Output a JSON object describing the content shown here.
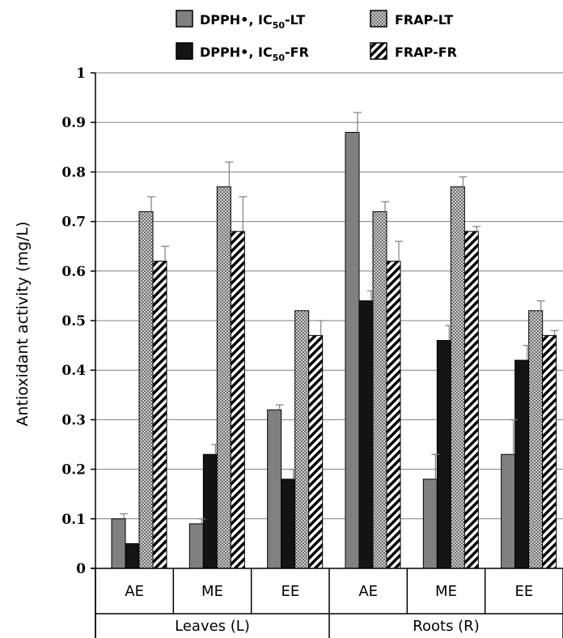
{
  "chart_data": {
    "type": "bar",
    "ylabel": "Antioxidant activity (mg/L)",
    "ylim": [
      0,
      1
    ],
    "yticks": [
      "0",
      "0.1",
      "0.2",
      "0.3",
      "0.4",
      "0.5",
      "0.6",
      "0.7",
      "0.8",
      "0.9",
      "1"
    ],
    "grid": true,
    "legend_position": "top",
    "groups": [
      {
        "label": "Leaves (L)",
        "categories": [
          "AE",
          "ME",
          "EE"
        ]
      },
      {
        "label": "Roots (R)",
        "categories": [
          "AE",
          "ME",
          "EE"
        ]
      }
    ],
    "categories": [
      "AE",
      "ME",
      "EE",
      "AE",
      "ME",
      "EE"
    ],
    "series": [
      {
        "name": "DPPH•, IC50-LT",
        "name_main": "DPPH•, IC",
        "name_sub": "50",
        "name_tail": "-LT",
        "pattern": "solid-gray",
        "color": "#808080",
        "values": [
          0.1,
          0.09,
          0.32,
          0.88,
          0.18,
          0.23
        ],
        "errors": [
          0.01,
          0.01,
          0.01,
          0.04,
          0.05,
          0.07
        ]
      },
      {
        "name": "DPPH•, IC50-FR",
        "name_main": "DPPH•, IC",
        "name_sub": "50",
        "name_tail": "-FR",
        "pattern": "solid-black",
        "color": "#141414",
        "values": [
          0.05,
          0.23,
          0.18,
          0.54,
          0.46,
          0.42
        ],
        "errors": [
          0.0,
          0.02,
          0.02,
          0.02,
          0.03,
          0.03
        ]
      },
      {
        "name": "FRAP-LT",
        "pattern": "dotted-gray",
        "color": "#a6a6a6",
        "values": [
          0.72,
          0.77,
          0.52,
          0.72,
          0.77,
          0.52
        ],
        "errors": [
          0.03,
          0.05,
          0.0,
          0.02,
          0.02,
          0.02
        ]
      },
      {
        "name": "FRAP-FR",
        "pattern": "diagonal-stripes",
        "color": "#000000",
        "values": [
          0.62,
          0.68,
          0.47,
          0.62,
          0.68,
          0.47
        ],
        "errors": [
          0.03,
          0.07,
          0.03,
          0.04,
          0.01,
          0.01
        ]
      }
    ]
  }
}
